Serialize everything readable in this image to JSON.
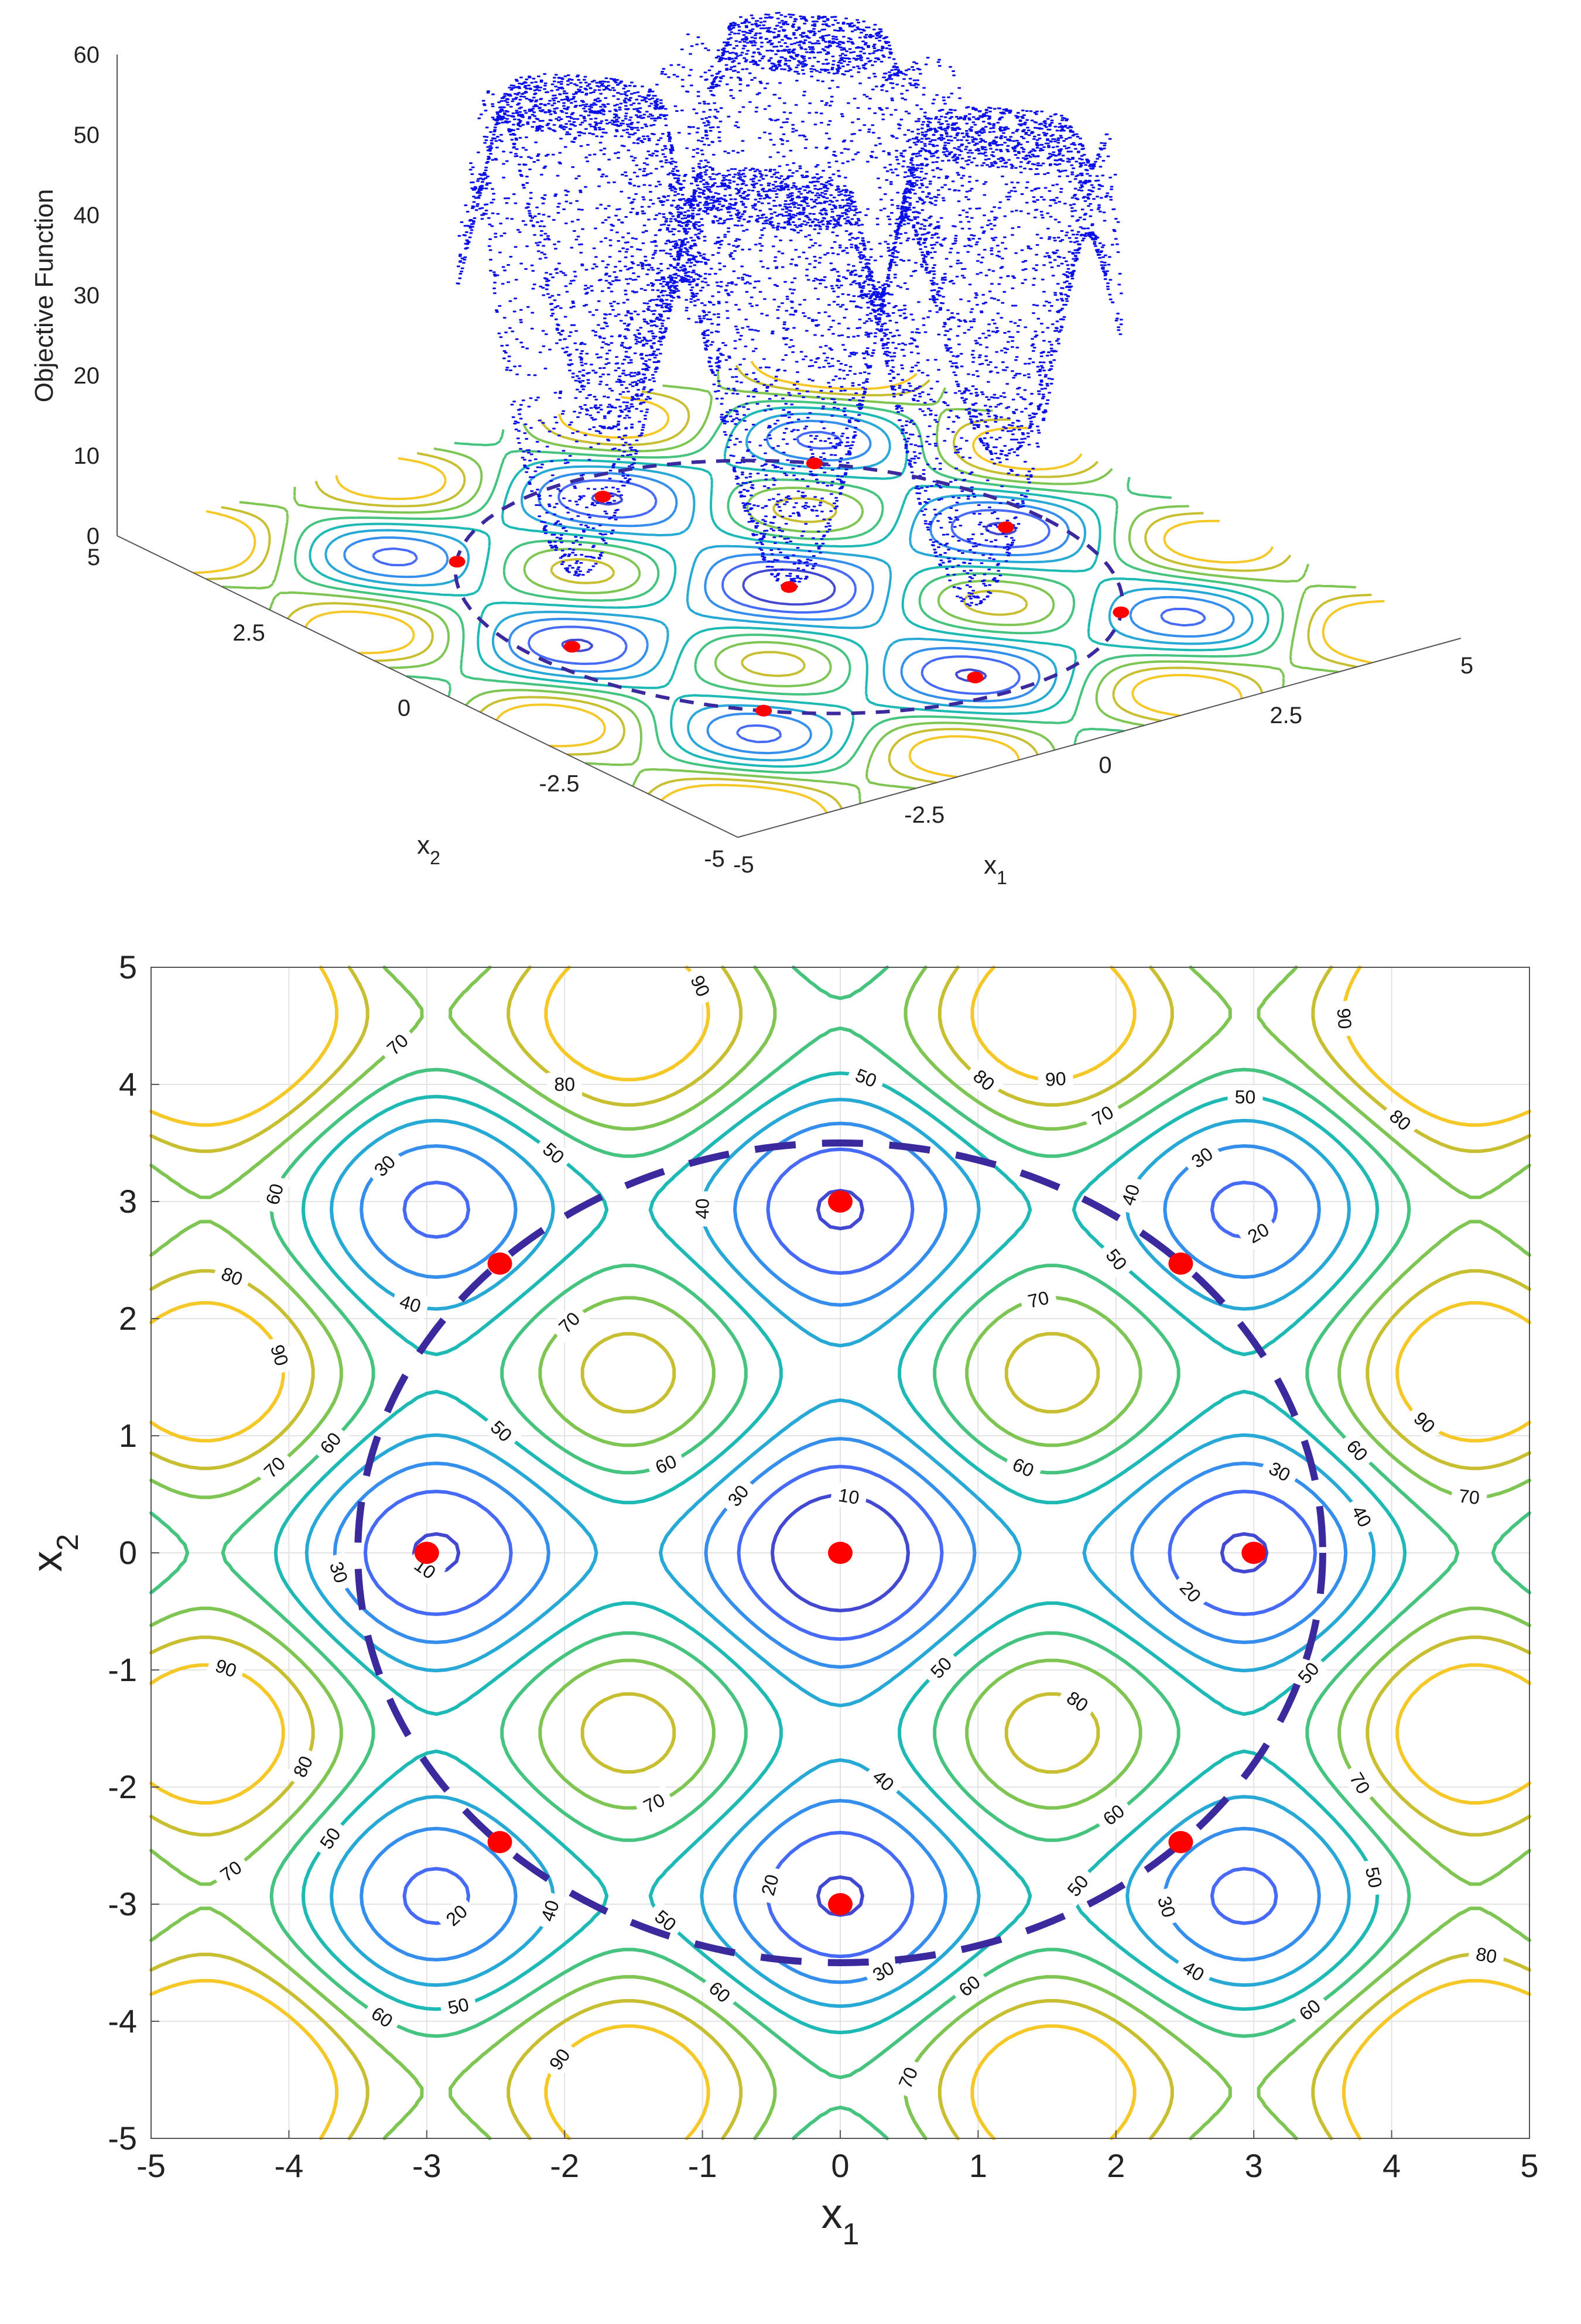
{
  "colors": {
    "scatter": "#0a10e6",
    "minima": "#ff0000",
    "circle": "#3b2a9e",
    "grid": "#e3e3e3",
    "axis": "#555555"
  },
  "chart_data": [
    {
      "type": "scatter",
      "subtype": "3d-scatter-with-contour-base",
      "zlabel": "Objective Function",
      "xlabel": "x",
      "xlabel_sub": "1",
      "ylabel": "x",
      "ylabel_sub": "2",
      "xlim": [
        -5,
        5
      ],
      "ylim": [
        -5,
        5
      ],
      "zlim": [
        0,
        60
      ],
      "x_ticks": [
        "-5",
        "-2.5",
        "0",
        "2.5",
        "5"
      ],
      "y_ticks": [
        "-5",
        "-2.5",
        "0",
        "2.5",
        "5"
      ],
      "z_ticks": [
        "0",
        "10",
        "20",
        "30",
        "40",
        "50",
        "60"
      ],
      "scatter_domain": "disk of radius 3.5 centered at origin",
      "constraint_circle_radius": 3.5,
      "minima_points": [
        {
          "x": 0,
          "y": 0
        },
        {
          "x": 3,
          "y": 0
        },
        {
          "x": -3,
          "y": 0
        },
        {
          "x": 0,
          "y": 3
        },
        {
          "x": 0,
          "y": -3
        },
        {
          "x": 2.47,
          "y": 2.47
        },
        {
          "x": -2.47,
          "y": 2.47
        },
        {
          "x": 2.47,
          "y": -2.47
        },
        {
          "x": -2.47,
          "y": -2.47
        }
      ]
    },
    {
      "type": "contour",
      "xlabel": "x",
      "xlabel_sub": "1",
      "ylabel": "x",
      "ylabel_sub": "2",
      "xlim": [
        -5,
        5
      ],
      "ylim": [
        -5,
        5
      ],
      "x_ticks": [
        "-5",
        "-4",
        "-3",
        "-2",
        "-1",
        "0",
        "1",
        "2",
        "3",
        "4",
        "5"
      ],
      "y_ticks": [
        "-5",
        "-4",
        "-3",
        "-2",
        "-1",
        "0",
        "1",
        "2",
        "3",
        "4",
        "5"
      ],
      "grid": true,
      "contour_levels": [
        10,
        20,
        30,
        40,
        50,
        60,
        70,
        80,
        90
      ],
      "constraint_circle_radius": 3.5,
      "circle_style": "dashed",
      "minima_points": [
        {
          "x": 0,
          "y": 0
        },
        {
          "x": 3,
          "y": 0
        },
        {
          "x": -3,
          "y": 0
        },
        {
          "x": 0,
          "y": 3
        },
        {
          "x": 0,
          "y": -3
        },
        {
          "x": 2.47,
          "y": 2.47
        },
        {
          "x": -2.47,
          "y": 2.47
        },
        {
          "x": 2.47,
          "y": -2.47
        },
        {
          "x": -2.47,
          "y": -2.47
        }
      ]
    }
  ]
}
